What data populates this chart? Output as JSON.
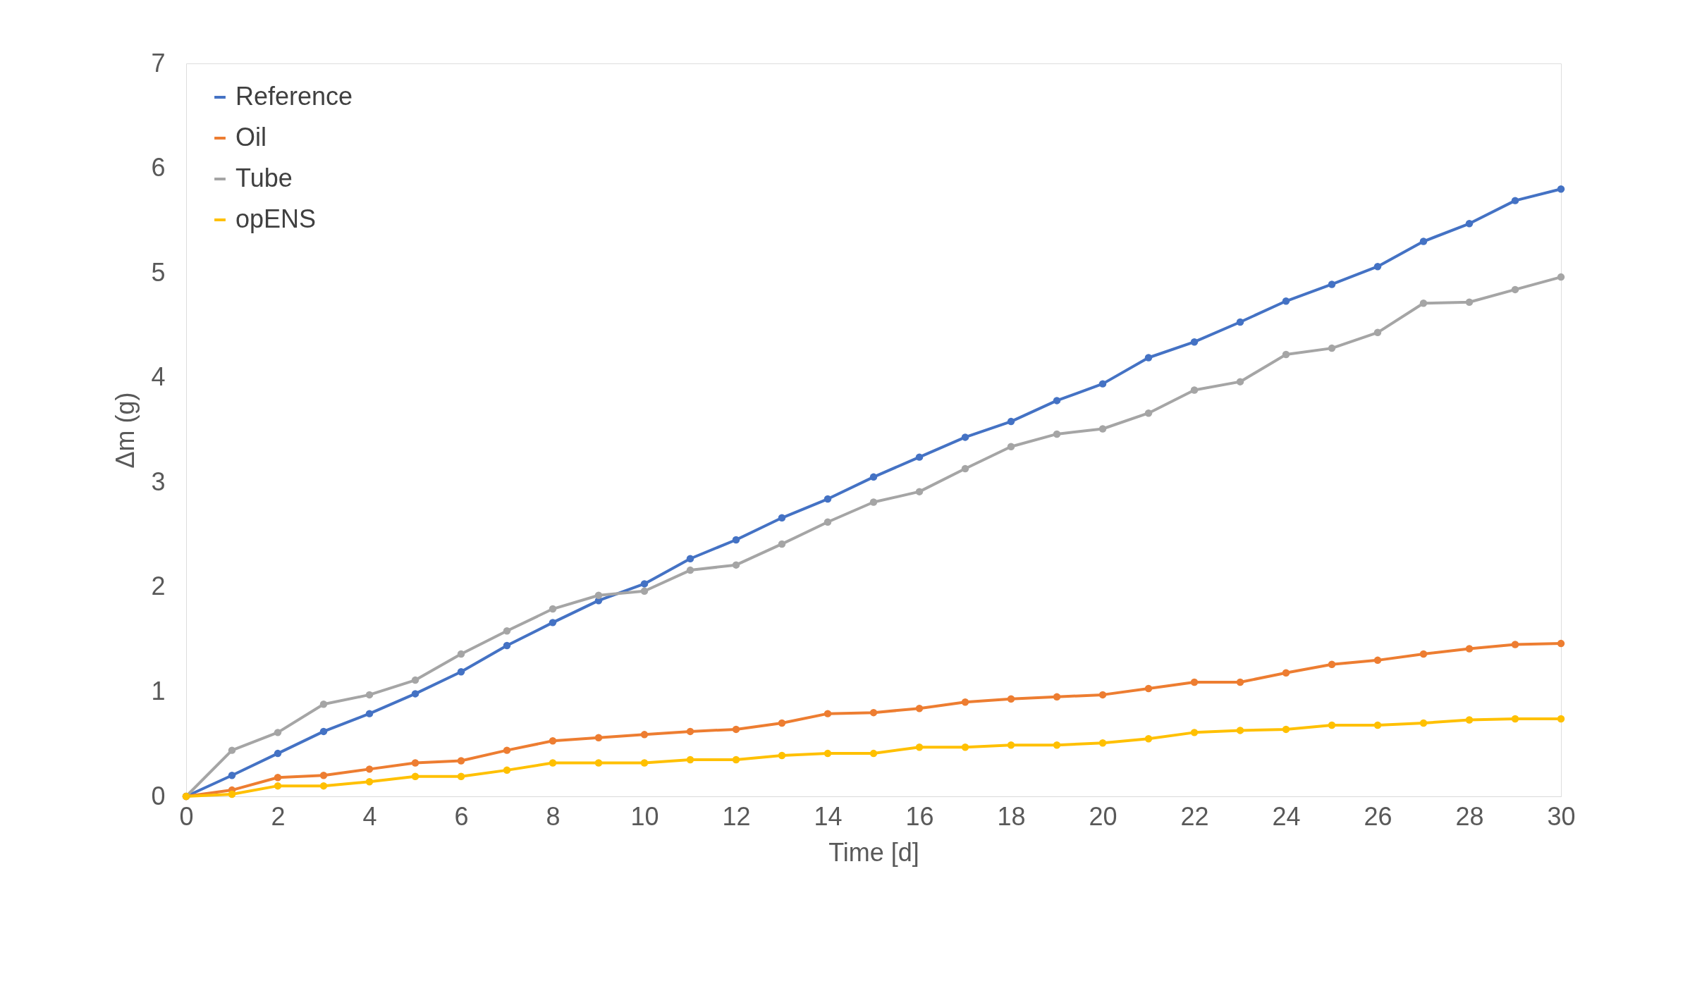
{
  "chart_data": {
    "type": "line",
    "xlabel": "Time [d]",
    "ylabel": "Δm (g)",
    "x": [
      0,
      1,
      2,
      3,
      4,
      5,
      6,
      7,
      8,
      9,
      10,
      11,
      12,
      13,
      14,
      15,
      16,
      17,
      18,
      19,
      20,
      21,
      22,
      23,
      24,
      25,
      26,
      27,
      28,
      29,
      30
    ],
    "xlim": [
      0,
      30
    ],
    "xticks": [
      0,
      2,
      4,
      6,
      8,
      10,
      12,
      14,
      16,
      18,
      20,
      22,
      24,
      26,
      28,
      30
    ],
    "ylim": [
      0,
      7
    ],
    "yticks": [
      0,
      1,
      2,
      3,
      4,
      5,
      6,
      7
    ],
    "grid": false,
    "legend": "top left",
    "marker": "circle",
    "line_style": "solid",
    "series": [
      {
        "name": "Reference",
        "color": "#4472c4",
        "values": [
          0,
          0.2,
          0.41,
          0.62,
          0.79,
          0.98,
          1.19,
          1.44,
          1.66,
          1.87,
          2.03,
          2.27,
          2.45,
          2.66,
          2.84,
          3.05,
          3.24,
          3.43,
          3.58,
          3.78,
          3.94,
          4.19,
          4.34,
          4.53,
          4.73,
          4.89,
          5.06,
          5.3,
          5.47,
          5.69,
          5.8
        ]
      },
      {
        "name": "Oil",
        "color": "#ed7d31",
        "values": [
          0,
          0.06,
          0.18,
          0.2,
          0.26,
          0.32,
          0.34,
          0.44,
          0.53,
          0.56,
          0.59,
          0.62,
          0.64,
          0.7,
          0.79,
          0.8,
          0.84,
          0.9,
          0.93,
          0.95,
          0.97,
          1.03,
          1.09,
          1.09,
          1.18,
          1.26,
          1.3,
          1.36,
          1.41,
          1.45,
          1.46
        ]
      },
      {
        "name": "Tube",
        "color": "#a5a5a5",
        "values": [
          0,
          0.44,
          0.61,
          0.88,
          0.97,
          1.11,
          1.36,
          1.58,
          1.79,
          1.92,
          1.96,
          2.16,
          2.21,
          2.41,
          2.62,
          2.81,
          2.91,
          3.13,
          3.34,
          3.46,
          3.51,
          3.66,
          3.88,
          3.96,
          4.22,
          4.28,
          4.43,
          4.71,
          4.72,
          4.84,
          4.96
        ]
      },
      {
        "name": "opENS",
        "color": "#ffc000",
        "values": [
          0,
          0.02,
          0.1,
          0.1,
          0.14,
          0.19,
          0.19,
          0.25,
          0.32,
          0.32,
          0.32,
          0.35,
          0.35,
          0.39,
          0.41,
          0.41,
          0.47,
          0.47,
          0.49,
          0.49,
          0.51,
          0.55,
          0.61,
          0.63,
          0.64,
          0.68,
          0.68,
          0.7,
          0.73,
          0.74,
          0.74
        ]
      }
    ]
  }
}
